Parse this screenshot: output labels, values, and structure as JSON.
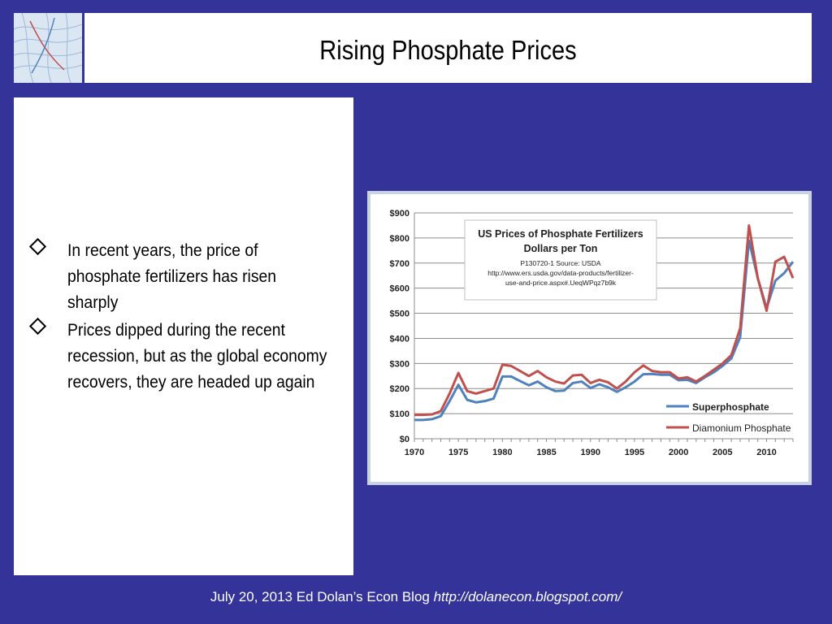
{
  "slide": {
    "title": "Rising Phosphate Prices",
    "bullets": [
      "In recent years, the price of phosphate fertilizers has risen sharply",
      "Prices dipped during the recent recession, but as the global economy recovers, they are headed up again"
    ],
    "footer_text": "July 20, 2013 Ed Dolan’s Econ Blog ",
    "footer_url": "http://dolanecon.blogspot.com/"
  },
  "chart_data": {
    "type": "line",
    "title_lines": [
      "US Prices of Phosphate Fertilizers",
      "Dollars per Ton"
    ],
    "source_lines": [
      "P130720-1 Source: USDA",
      "http://www.ers.usda.gov/data-products/fertilizer-",
      "use-and-price.aspx#.UeqWPqz7b9k"
    ],
    "xlim": [
      1970,
      2013
    ],
    "x_ticks": [
      1970,
      1975,
      1980,
      1985,
      1990,
      1995,
      2000,
      2005,
      2010
    ],
    "ylim": [
      0,
      900
    ],
    "y_ticks": [
      0,
      100,
      200,
      300,
      400,
      500,
      600,
      700,
      800,
      900
    ],
    "y_tick_labels": [
      "$0",
      "$100",
      "$200",
      "$300",
      "$400",
      "$500",
      "$600",
      "$700",
      "$800",
      "$900"
    ],
    "grid": "horizontal",
    "legend_position": "bottom-right",
    "x": [
      1970,
      1971,
      1972,
      1973,
      1974,
      1975,
      1976,
      1977,
      1978,
      1979,
      1980,
      1981,
      1982,
      1983,
      1984,
      1985,
      1986,
      1987,
      1988,
      1989,
      1990,
      1991,
      1992,
      1993,
      1994,
      1995,
      1996,
      1997,
      1998,
      1999,
      2000,
      2001,
      2002,
      2003,
      2004,
      2005,
      2006,
      2007,
      2008,
      2009,
      2010,
      2011,
      2012,
      2013
    ],
    "series": [
      {
        "name": "Superphosphate",
        "color": "#4f81bd",
        "values": [
          75,
          75,
          78,
          90,
          150,
          215,
          155,
          145,
          150,
          160,
          248,
          248,
          230,
          213,
          228,
          205,
          190,
          192,
          222,
          228,
          202,
          217,
          205,
          187,
          205,
          228,
          257,
          258,
          255,
          255,
          233,
          235,
          222,
          245,
          265,
          290,
          320,
          405,
          790,
          640,
          520,
          630,
          660,
          705
        ]
      },
      {
        "name": "Diamonium Phosphate",
        "color": "#c0504d",
        "values": [
          95,
          95,
          97,
          110,
          180,
          262,
          190,
          180,
          190,
          200,
          295,
          290,
          270,
          250,
          270,
          245,
          228,
          220,
          252,
          255,
          222,
          235,
          225,
          200,
          228,
          265,
          292,
          270,
          265,
          265,
          240,
          245,
          228,
          250,
          275,
          300,
          333,
          440,
          850,
          640,
          510,
          705,
          725,
          640
        ]
      }
    ]
  }
}
